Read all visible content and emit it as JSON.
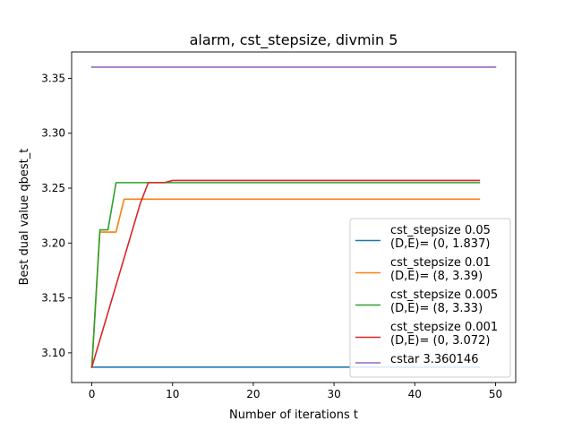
{
  "chart_data": {
    "type": "line",
    "title": "alarm, cst_stepsize, divmin 5",
    "xlabel": "Number of iterations t",
    "ylabel": "Best dual value qbest_t",
    "xlim": [
      -2.5,
      52.5
    ],
    "ylim": [
      3.073,
      3.374
    ],
    "xticks": [
      0,
      10,
      20,
      30,
      40,
      50
    ],
    "yticks": [
      3.1,
      3.15,
      3.2,
      3.25,
      3.3,
      3.35
    ],
    "ytick_labels": [
      "3.10",
      "3.15",
      "3.20",
      "3.25",
      "3.30",
      "3.35"
    ],
    "grid": false,
    "legend_position": "lower-right",
    "series": [
      {
        "name": "cst_stepsize 0.05\n(D,E)= (0, 1.837)",
        "color": "#1f77b4",
        "points": [
          [
            0,
            3.087
          ],
          [
            48,
            3.087
          ]
        ]
      },
      {
        "name": "cst_stepsize 0.01\n(D,E)= (8, 3.39)",
        "color": "#ff7f0e",
        "points": [
          [
            0,
            3.087
          ],
          [
            1,
            3.21
          ],
          [
            2,
            3.21
          ],
          [
            3,
            3.21
          ],
          [
            4,
            3.24
          ],
          [
            48,
            3.24
          ]
        ]
      },
      {
        "name": "cst_stepsize 0.005\n(D,E)= (8, 3.33)",
        "color": "#2ca02c",
        "points": [
          [
            0,
            3.087
          ],
          [
            1,
            3.212
          ],
          [
            2,
            3.212
          ],
          [
            3,
            3.255
          ],
          [
            48,
            3.255
          ]
        ]
      },
      {
        "name": "cst_stepsize 0.001\n(D,E)= (0, 3.072)",
        "color": "#d62728",
        "points": [
          [
            0,
            3.087
          ],
          [
            6,
            3.236
          ],
          [
            7,
            3.255
          ],
          [
            9,
            3.255
          ],
          [
            10,
            3.257
          ],
          [
            48,
            3.257
          ]
        ]
      },
      {
        "name": "cstar 3.360146",
        "color": "#9467bd",
        "points": [
          [
            0,
            3.360146
          ],
          [
            50,
            3.360146
          ]
        ]
      }
    ]
  }
}
